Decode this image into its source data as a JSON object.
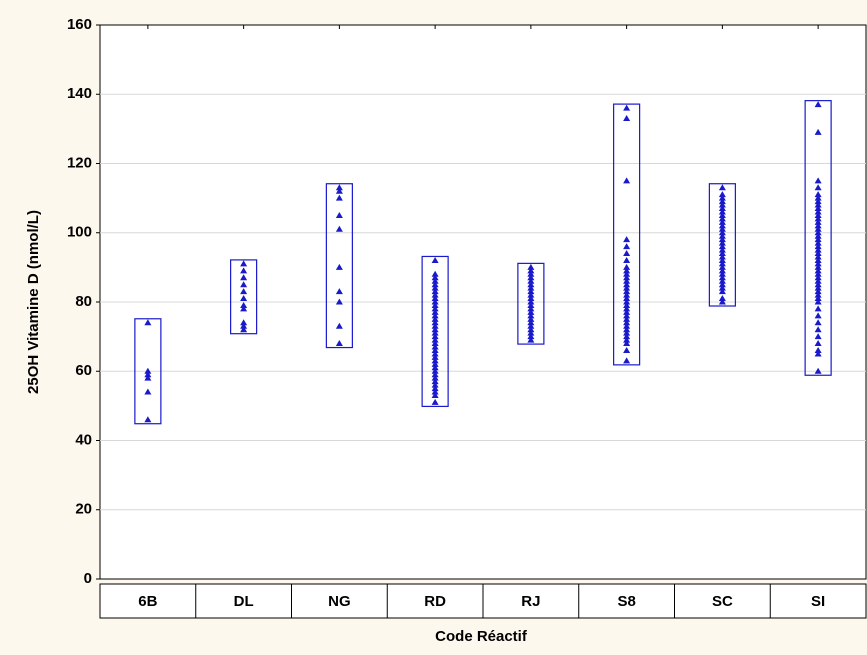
{
  "chart_data": {
    "type": "strip",
    "x_label": "Code Réactif",
    "y_label": "25OH Vitamine D (nmol/L)",
    "categories": [
      "6B",
      "DL",
      "NG",
      "RD",
      "RJ",
      "S8",
      "SC",
      "SI"
    ],
    "color": "#1a1acc",
    "ylim": [
      0,
      160
    ],
    "yticks": [
      0,
      20,
      40,
      60,
      80,
      100,
      120,
      140,
      160
    ],
    "grid": true,
    "values": [
      [
        74,
        60,
        59,
        58,
        54,
        46
      ],
      [
        91,
        89,
        87,
        85,
        83,
        81,
        79,
        78,
        74,
        73,
        72
      ],
      [
        113,
        112,
        110,
        105,
        101,
        90,
        83,
        80,
        73,
        68
      ],
      [
        92,
        88,
        87,
        86,
        85,
        84,
        83,
        82,
        81,
        80,
        79,
        78,
        77,
        76,
        75,
        74,
        73,
        72,
        71,
        70,
        69,
        68,
        67,
        66,
        65,
        64,
        63,
        62,
        61,
        60,
        59,
        58,
        57,
        56,
        55,
        54,
        53,
        51
      ],
      [
        90,
        89,
        88,
        87,
        86,
        85,
        84,
        83,
        82,
        81,
        80,
        79,
        78,
        77,
        76,
        75,
        74,
        73,
        72,
        71,
        70,
        69
      ],
      [
        136,
        133,
        115,
        98,
        96,
        94,
        92,
        90,
        89,
        88,
        87,
        86,
        85,
        84,
        83,
        82,
        81,
        80,
        79,
        78,
        77,
        76,
        75,
        74,
        73,
        72,
        71,
        70,
        69,
        68,
        66,
        63
      ],
      [
        113,
        111,
        110,
        109,
        108,
        107,
        106,
        105,
        104,
        103,
        102,
        101,
        100,
        99,
        98,
        97,
        96,
        95,
        94,
        93,
        92,
        91,
        90,
        89,
        88,
        87,
        86,
        85,
        84,
        83,
        81,
        80
      ],
      [
        137,
        129,
        115,
        113,
        111,
        110,
        109,
        108,
        107,
        106,
        105,
        104,
        103,
        102,
        101,
        100,
        99,
        98,
        97,
        96,
        95,
        94,
        93,
        92,
        91,
        90,
        89,
        88,
        87,
        86,
        85,
        84,
        83,
        82,
        81,
        80,
        78,
        76,
        74,
        72,
        70,
        68,
        66,
        65,
        60
      ]
    ]
  }
}
